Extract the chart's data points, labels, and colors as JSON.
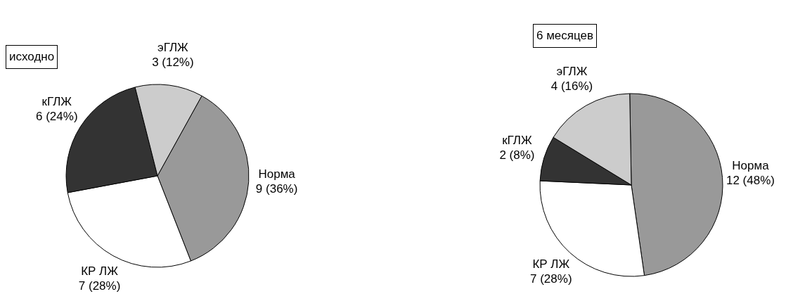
{
  "chart_data": [
    {
      "type": "pie",
      "title": "исходно",
      "categories": [
        "Норма",
        "КР ЛЖ",
        "кГЛЖ",
        "эГЛЖ"
      ],
      "values": [
        9,
        7,
        6,
        3
      ],
      "value_labels": [
        "9 (36%)",
        "7 (28%)",
        "6 (24%)",
        "3 (12%)"
      ],
      "colors": [
        "#999999",
        "#ffffff",
        "#333333",
        "#cccccc"
      ]
    },
    {
      "type": "pie",
      "title": "6 месяцев",
      "categories": [
        "Норма",
        "КР ЛЖ",
        "кГЛЖ",
        "эГЛЖ"
      ],
      "values": [
        12,
        7,
        2,
        4
      ],
      "value_labels": [
        "12 (48%)",
        "7 (28%)",
        "2 (8%)",
        "4 (16%)"
      ],
      "colors": [
        "#999999",
        "#ffffff",
        "#333333",
        "#cccccc"
      ]
    }
  ]
}
